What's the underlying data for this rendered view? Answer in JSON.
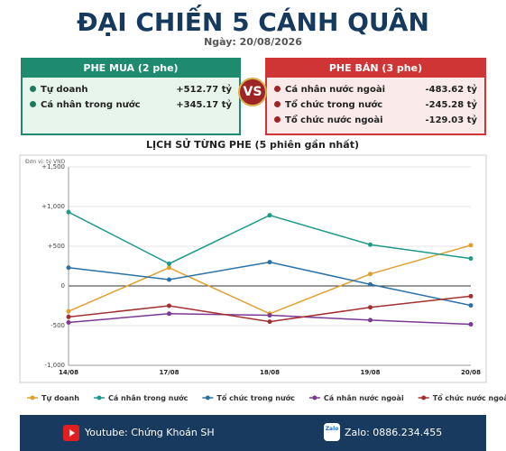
{
  "header": {
    "title": "ĐẠI CHIẾN 5 CÁNH QUÂN",
    "date": "Ngày: 20/08/2026"
  },
  "buy": {
    "title": "PHE MUA  (2 phe)",
    "rows": [
      [
        "Tự doanh",
        "+512.77 tỷ"
      ],
      [
        "Cá nhân trong nước",
        "+345.17 tỷ"
      ]
    ]
  },
  "vs": "VS",
  "sell": {
    "title": "PHE BÁN  (3 phe)",
    "rows": [
      [
        "Cá nhân nước ngoài",
        "-483.62 tỷ"
      ],
      [
        "Tổ chức trong nước",
        "-245.28 tỷ"
      ],
      [
        "Tổ chức nước ngoài",
        "-129.03 tỷ"
      ]
    ]
  },
  "chart_data": {
    "type": "line",
    "title": "LỊCH SỬ TỪNG PHE (5 phiên gần nhất)",
    "y_unit": "Đơn vị: tỷ VND",
    "categories": [
      "14/08",
      "17/08",
      "18/08",
      "19/08",
      "20/08"
    ],
    "ylim": [
      -1000,
      1500
    ],
    "yticks": [
      {
        "value": -1000,
        "label": "-1,000"
      },
      {
        "value": -500,
        "label": "-500"
      },
      0,
      {
        "value": 500,
        "label": "+500"
      },
      {
        "value": 1000,
        "label": "+1,000"
      },
      {
        "value": 1500,
        "label": "+1,500"
      }
    ],
    "grid": true,
    "series": [
      {
        "name": "Tự doanh",
        "color": "#e0a030",
        "values": [
          -320,
          230,
          -350,
          150,
          512.77
        ]
      },
      {
        "name": "Cá nhân trong nước",
        "color": "#1f9a8a",
        "values": [
          930,
          280,
          890,
          520,
          345.17
        ]
      },
      {
        "name": "Tổ chức trong nước",
        "color": "#2a72a6",
        "values": [
          230,
          80,
          300,
          20,
          -245.28
        ]
      },
      {
        "name": "Cá nhân nước ngoài",
        "color": "#7b3a92",
        "values": [
          -460,
          -350,
          -370,
          -430,
          -483.62
        ]
      },
      {
        "name": "Tổ chức nước ngoài",
        "color": "#a33030",
        "values": [
          -390,
          -250,
          -450,
          -270,
          -129.03
        ]
      }
    ]
  },
  "footer": {
    "youtube": "Youtube: Chứng Khoán SH",
    "zalo_icon": "Zalo",
    "zalo": "Zalo: 0886.234.455"
  }
}
